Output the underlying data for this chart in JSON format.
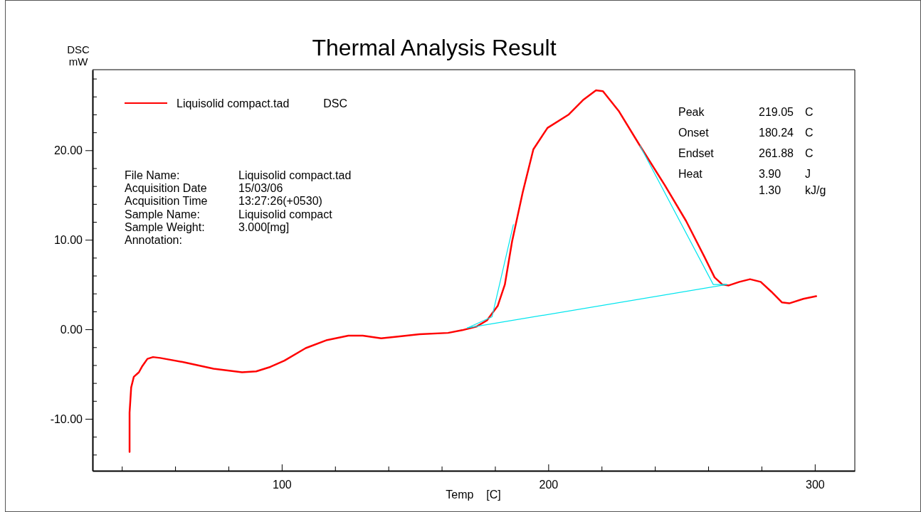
{
  "chart_data": {
    "type": "line",
    "title": "Thermal Analysis Result",
    "xlabel": "Temp    [C]",
    "ylabel": "DSC\nmW",
    "xlim": [
      29,
      315
    ],
    "ylim": [
      -15.8,
      29
    ],
    "xticks": [
      {
        "value": 40,
        "label": null
      },
      {
        "value": 60,
        "label": null
      },
      {
        "value": 80,
        "label": null
      },
      100,
      {
        "value": 120,
        "label": null
      },
      {
        "value": 140,
        "label": null
      },
      {
        "value": 160,
        "label": null
      },
      {
        "value": 180,
        "label": null
      },
      200,
      {
        "value": 220,
        "label": null
      },
      {
        "value": 240,
        "label": null
      },
      {
        "value": 260,
        "label": null
      },
      {
        "value": 280,
        "label": null
      },
      300
    ],
    "yticks": [
      {
        "value": -14,
        "label": null
      },
      {
        "value": -12,
        "label": null
      },
      {
        "value": -10,
        "label": "-10.00"
      },
      {
        "value": -8,
        "label": null
      },
      {
        "value": -6,
        "label": null
      },
      {
        "value": -4,
        "label": null
      },
      {
        "value": -2,
        "label": null
      },
      {
        "value": 0,
        "label": "0.00"
      },
      {
        "value": 2,
        "label": null
      },
      {
        "value": 4,
        "label": null
      },
      {
        "value": 6,
        "label": null
      },
      {
        "value": 8,
        "label": null
      },
      {
        "value": 10,
        "label": "10.00"
      },
      {
        "value": 12,
        "label": null
      },
      {
        "value": 14,
        "label": null
      },
      {
        "value": 16,
        "label": null
      },
      {
        "value": 18,
        "label": null
      },
      {
        "value": 20,
        "label": "20.00"
      },
      {
        "value": 22,
        "label": null
      },
      {
        "value": 24,
        "label": null
      },
      {
        "value": 26,
        "label": null
      },
      {
        "value": 28,
        "label": null
      }
    ],
    "grid": false,
    "legend": "top left",
    "line_style": "solid",
    "marker": "none",
    "series": [
      {
        "name": "Liquisolid compact.tad",
        "color": "#ff0000",
        "x": [
          42.9,
          42.9,
          43.5,
          44.5,
          46.4,
          47.7,
          49.6,
          51.7,
          54.4,
          63.7,
          74.4,
          85.1,
          90.4,
          95.7,
          101,
          109,
          117,
          125,
          130.4,
          137.3,
          143.7,
          151.7,
          162.4,
          167.7,
          173,
          177,
          181,
          183.7,
          186.4,
          190.4,
          194.4,
          199.7,
          207.7,
          213,
          217.9,
          220.5,
          226.4,
          234.4,
          243.7,
          251.7,
          258.4,
          262.4,
          265.3,
          267.7,
          271.7,
          275.7,
          279.7,
          283.7,
          287.7,
          290.4,
          295.7,
          300.5
        ],
        "values": [
          -13.7,
          -9.3,
          -6.5,
          -5.3,
          -4.8,
          -4.1,
          -3.3,
          -3.1,
          -3.2,
          -3.7,
          -4.4,
          -4.8,
          -4.7,
          -4.2,
          -3.5,
          -2.1,
          -1.2,
          -0.7,
          -0.7,
          -1.0,
          -0.8,
          -0.55,
          -0.4,
          -0.1,
          0.3,
          1.0,
          2.6,
          5.0,
          9.8,
          15.3,
          20.1,
          22.5,
          24.0,
          25.6,
          26.7,
          26.6,
          24.4,
          20.5,
          16.1,
          12.1,
          8.2,
          5.8,
          5.0,
          4.9,
          5.3,
          5.6,
          5.3,
          4.2,
          3.0,
          2.9,
          3.4,
          3.7
        ]
      },
      {
        "color": "#00e5ee",
        "x": [
          169.6,
          266.9
        ],
        "values": [
          0.15,
          5.0
        ]
      },
      {
        "color": "#00e5ee",
        "x": [
          169.6,
          178.9,
          186.9
        ],
        "values": [
          0.15,
          1.4,
          11.7
        ]
      },
      {
        "color": "#00e5ee",
        "x": [
          234.4,
          261.9,
          266.9
        ],
        "values": [
          20.5,
          5.0,
          5.0
        ]
      }
    ],
    "annotations": [
      "DSC",
      "File Name:\tLiquisolid compact.tad",
      "Acquisition Date\t15/03/06",
      "Acquisition Time\t13:27:26(+0530)",
      "Sample Name:\tLiquisolid compact",
      "Sample Weight:\t3.000[mg]",
      "Annotation:",
      "Peak\t219.05\tC",
      "Onset\t180.24\tC",
      "Endset\t261.88\tC",
      "Heat\t3.90\tJ",
      "\t1.30\tkJ/g"
    ]
  }
}
